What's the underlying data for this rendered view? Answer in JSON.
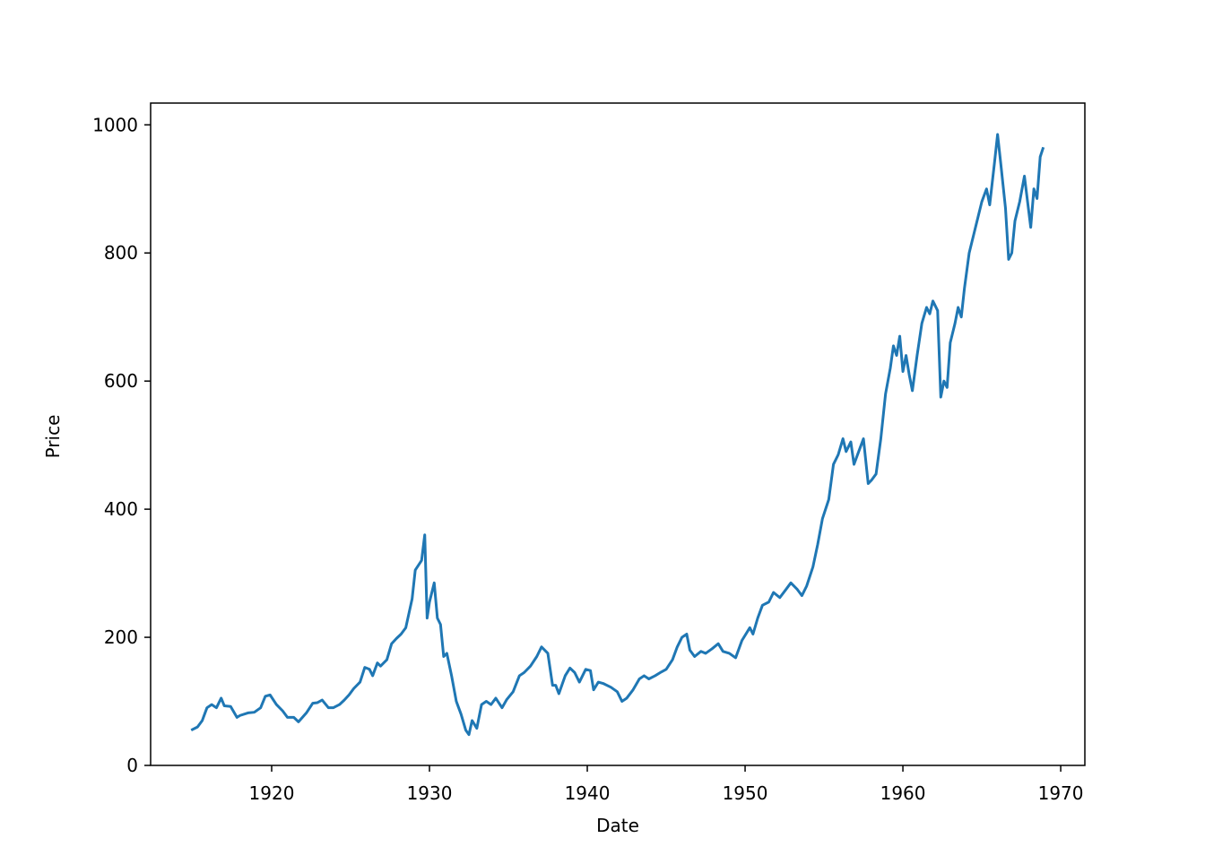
{
  "chart_data": {
    "type": "line",
    "xlabel": "Date",
    "ylabel": "Price",
    "color": "#1f77b4",
    "xlim": [
      1912.33,
      1971.53
    ],
    "ylim": [
      0,
      1034
    ],
    "xticks": [
      1920,
      1930,
      1940,
      1950,
      1960,
      1970
    ],
    "yticks": [
      0,
      200,
      400,
      600,
      800,
      1000
    ],
    "x": [
      1914.9,
      1915.3,
      1915.6,
      1915.9,
      1916.2,
      1916.5,
      1916.8,
      1917.0,
      1917.4,
      1917.8,
      1918.0,
      1918.5,
      1918.9,
      1919.3,
      1919.6,
      1919.9,
      1920.3,
      1920.7,
      1921.0,
      1921.4,
      1921.7,
      1922.2,
      1922.6,
      1922.9,
      1923.2,
      1923.6,
      1923.9,
      1924.3,
      1924.6,
      1924.9,
      1925.2,
      1925.6,
      1925.9,
      1926.2,
      1926.4,
      1926.7,
      1926.9,
      1927.3,
      1927.6,
      1927.9,
      1928.2,
      1928.5,
      1928.9,
      1929.1,
      1929.5,
      1929.7,
      1929.85,
      1930.0,
      1930.3,
      1930.5,
      1930.7,
      1930.9,
      1931.1,
      1931.4,
      1931.7,
      1932.0,
      1932.3,
      1932.5,
      1932.7,
      1933.0,
      1933.3,
      1933.6,
      1933.9,
      1934.2,
      1934.6,
      1934.9,
      1935.3,
      1935.7,
      1936.0,
      1936.4,
      1936.8,
      1937.1,
      1937.5,
      1937.8,
      1938.0,
      1938.2,
      1938.6,
      1938.9,
      1939.2,
      1939.5,
      1939.9,
      1940.2,
      1940.4,
      1940.7,
      1941.0,
      1941.5,
      1941.9,
      1942.2,
      1942.5,
      1942.9,
      1943.3,
      1943.6,
      1943.9,
      1944.3,
      1944.7,
      1945.0,
      1945.4,
      1945.7,
      1946.0,
      1946.3,
      1946.5,
      1946.8,
      1947.2,
      1947.5,
      1947.9,
      1948.3,
      1948.6,
      1949.0,
      1949.4,
      1949.8,
      1950.3,
      1950.5,
      1950.8,
      1951.1,
      1951.5,
      1951.8,
      1952.2,
      1952.6,
      1952.9,
      1953.3,
      1953.6,
      1953.9,
      1954.3,
      1954.6,
      1954.9,
      1955.3,
      1955.6,
      1955.9,
      1956.2,
      1956.4,
      1956.7,
      1956.9,
      1957.2,
      1957.5,
      1957.8,
      1958.0,
      1958.3,
      1958.6,
      1958.9,
      1959.2,
      1959.4,
      1959.6,
      1959.8,
      1960.0,
      1960.2,
      1960.4,
      1960.6,
      1960.9,
      1961.2,
      1961.5,
      1961.7,
      1961.9,
      1962.2,
      1962.4,
      1962.6,
      1962.8,
      1963.0,
      1963.3,
      1963.5,
      1963.7,
      1963.9,
      1964.2,
      1964.5,
      1964.8,
      1965.0,
      1965.3,
      1965.5,
      1965.8,
      1966.0,
      1966.2,
      1966.5,
      1966.7,
      1966.9,
      1967.1,
      1967.4,
      1967.7,
      1967.9,
      1968.1,
      1968.3,
      1968.5,
      1968.7,
      1968.9
    ],
    "values": [
      55,
      60,
      70,
      90,
      95,
      90,
      105,
      93,
      92,
      75,
      78,
      82,
      83,
      90,
      108,
      110,
      95,
      85,
      75,
      75,
      68,
      82,
      97,
      98,
      102,
      90,
      90,
      95,
      102,
      110,
      120,
      130,
      153,
      150,
      140,
      160,
      155,
      165,
      190,
      198,
      205,
      215,
      260,
      305,
      320,
      360,
      230,
      255,
      285,
      230,
      220,
      170,
      175,
      140,
      100,
      80,
      55,
      48,
      70,
      58,
      95,
      100,
      95,
      105,
      90,
      103,
      115,
      140,
      145,
      155,
      170,
      185,
      175,
      125,
      125,
      112,
      140,
      152,
      145,
      130,
      150,
      148,
      118,
      130,
      128,
      122,
      115,
      100,
      105,
      118,
      135,
      140,
      135,
      140,
      146,
      150,
      165,
      185,
      200,
      205,
      180,
      170,
      178,
      175,
      182,
      190,
      178,
      175,
      168,
      195,
      215,
      205,
      230,
      250,
      255,
      270,
      262,
      275,
      285,
      275,
      265,
      280,
      310,
      345,
      385,
      415,
      470,
      485,
      510,
      490,
      505,
      470,
      490,
      510,
      440,
      445,
      455,
      510,
      580,
      620,
      655,
      640,
      670,
      615,
      640,
      610,
      585,
      640,
      690,
      715,
      705,
      725,
      710,
      575,
      600,
      590,
      660,
      690,
      715,
      700,
      745,
      800,
      830,
      860,
      880,
      900,
      875,
      940,
      985,
      940,
      870,
      790,
      800,
      850,
      880,
      920,
      880,
      840,
      900,
      885,
      950,
      965
    ]
  }
}
